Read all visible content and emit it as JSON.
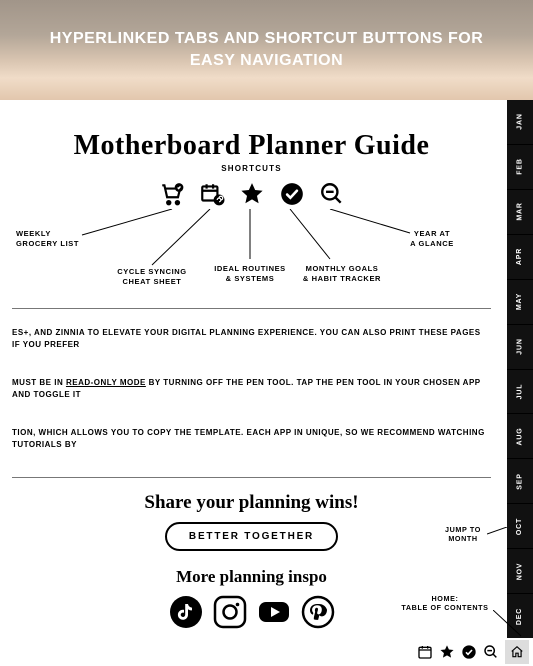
{
  "hero": {
    "title": "HYPERLINKED TABS AND SHORTCUT BUTTONS FOR EASY NAVIGATION"
  },
  "guide": {
    "title": "Motherboard Planner Guide",
    "shortcuts_label": "SHORTCUTS"
  },
  "shortcuts": [
    {
      "name": "weekly-grocery-list",
      "label": "WEEKLY\nGROCERY LIST"
    },
    {
      "name": "cycle-syncing",
      "label": "CYCLE SYNCING\nCHEAT SHEET"
    },
    {
      "name": "ideal-routines",
      "label": "IDEAL ROUTINES\n& SYSTEMS"
    },
    {
      "name": "monthly-goals",
      "label": "MONTHLY GOALS\n& HABIT TRACKER"
    },
    {
      "name": "year-glance",
      "label": "YEAR AT\nA GLANCE"
    }
  ],
  "body": {
    "p1": "ES+, AND ZINNIA TO ELEVATE YOUR DIGITAL PLANNING EXPERIENCE. YOU CAN ALSO PRINT THESE PAGES IF YOU PREFER",
    "p2_a": "MUST BE IN ",
    "p2_em": "READ-ONLY MODE",
    "p2_b": " BY TURNING OFF THE PEN TOOL. TAP THE PEN TOOL IN YOUR CHOSEN APP AND TOGGLE IT",
    "p3": "TION, WHICH ALLOWS YOU TO COPY THE TEMPLATE. EACH APP IN UNIQUE, SO WE RECOMMEND WATCHING TUTORIALS BY"
  },
  "share": {
    "title": "Share your planning wins!",
    "button": "BETTER TOGETHER",
    "inspo": "More planning inspo"
  },
  "months": [
    "JAN",
    "FEB",
    "MAR",
    "APR",
    "MAY",
    "JUN",
    "JUL",
    "AUG",
    "SEP",
    "OCT",
    "NOV",
    "DEC"
  ],
  "side_labels": {
    "jump": "JUMP TO\nMONTH",
    "home": "HOME:\nTABLE OF CONTENTS"
  },
  "colors": {
    "text": "#000000",
    "rail_bg": "#111111",
    "rail_text": "#ffffff",
    "home_bg": "#dddddd",
    "separator": "#777777"
  }
}
